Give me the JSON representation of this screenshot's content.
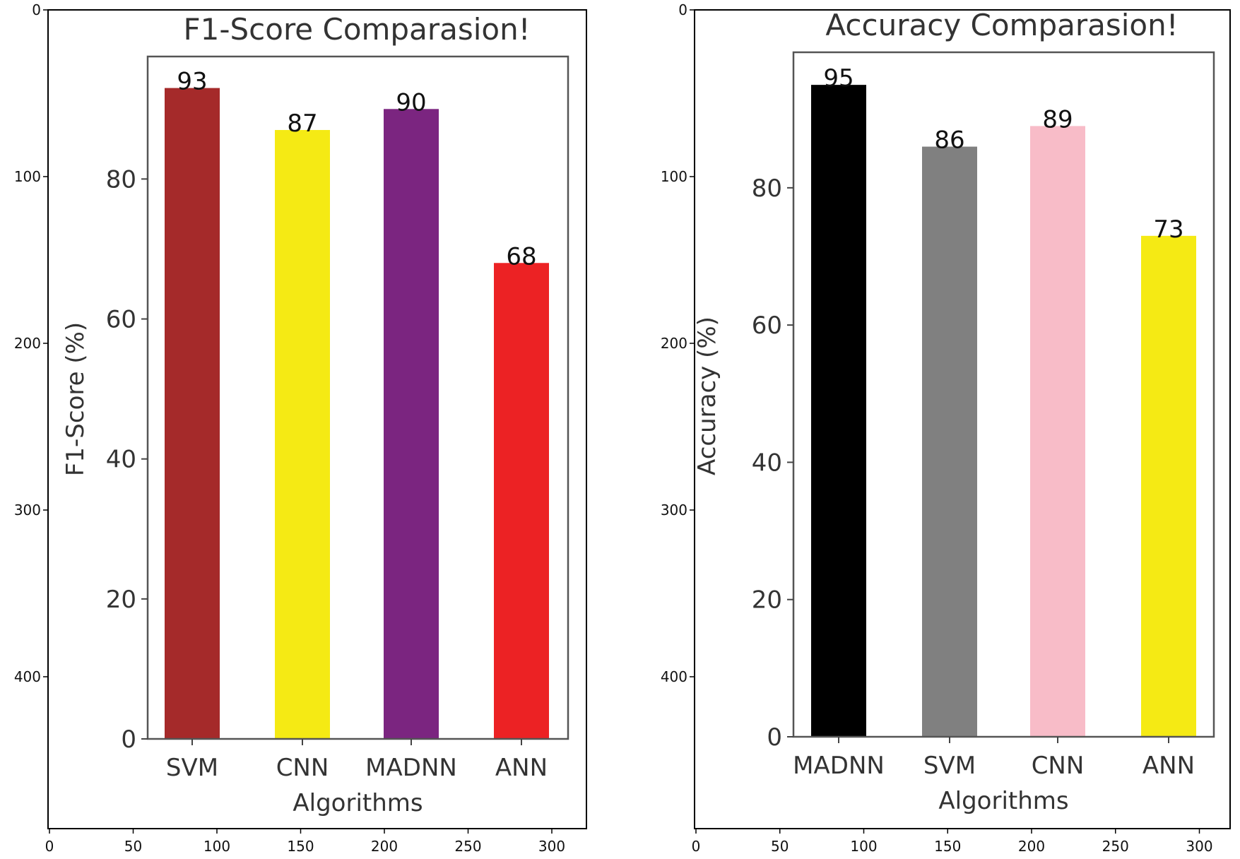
{
  "chart_data": [
    {
      "type": "bar",
      "title": "F1-Score Comparasion!",
      "xlabel": "Algorithms",
      "ylabel": "F1-Score (%)",
      "categories": [
        "SVM",
        "CNN",
        "MADNN",
        "ANN"
      ],
      "values": [
        93,
        87,
        90,
        68
      ],
      "bar_labels": [
        "93",
        "87",
        "90",
        "68"
      ],
      "colors": [
        "#a52a2a",
        "#f5ea14",
        "#7b2580",
        "#ec2224"
      ],
      "ylim": [
        0,
        97.5
      ],
      "yticks": [
        "0",
        "20",
        "40",
        "60",
        "80"
      ],
      "image_axes": {
        "xticks": [
          "0",
          "50",
          "100",
          "150",
          "200",
          "250",
          "300"
        ],
        "yticks": [
          "0",
          "100",
          "200",
          "300",
          "400"
        ]
      }
    },
    {
      "type": "bar",
      "title": "Accuracy Comparasion!",
      "xlabel": "Algorithms",
      "ylabel": "Accuracy (%)",
      "categories": [
        "MADNN",
        "SVM",
        "CNN",
        "ANN"
      ],
      "values": [
        95,
        86,
        89,
        73
      ],
      "bar_labels": [
        "95",
        "86",
        "89",
        "73"
      ],
      "colors": [
        "#000000",
        "#808080",
        "#f8bcc8",
        "#f5ea14"
      ],
      "ylim": [
        0,
        99.75
      ],
      "yticks": [
        "0",
        "20",
        "40",
        "60",
        "80"
      ],
      "image_axes": {
        "xticks": [
          "0",
          "50",
          "100",
          "150",
          "200",
          "250",
          "300"
        ],
        "yticks": [
          "0",
          "100",
          "200",
          "300",
          "400"
        ]
      }
    }
  ]
}
